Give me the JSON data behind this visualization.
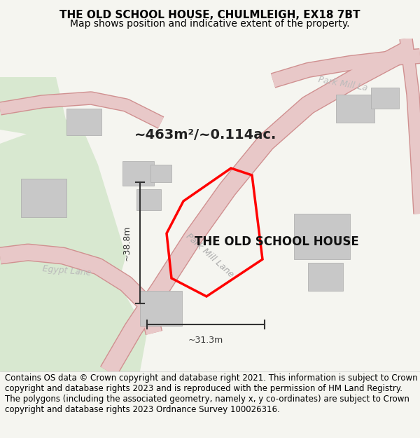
{
  "title_line1": "THE OLD SCHOOL HOUSE, CHULMLEIGH, EX18 7BT",
  "title_line2": "Map shows position and indicative extent of the property.",
  "footer_text": "Contains OS data © Crown copyright and database right 2021. This information is subject to Crown copyright and database rights 2023 and is reproduced with the permission of HM Land Registry. The polygons (including the associated geometry, namely x, y co-ordinates) are subject to Crown copyright and database rights 2023 Ordnance Survey 100026316.",
  "area_label": "~463m²/~0.114ac.",
  "property_label": "THE OLD SCHOOL HOUSE",
  "dim_width": "~31.3m",
  "dim_height": "~38.8m",
  "road_label1": "Park Mill Lane",
  "road_label2": "Park Mill La",
  "road_label3": "Egypt Lane",
  "bg_color": "#f5f5f0",
  "map_bg": "#f8f8f5",
  "green_area_color": "#d8e8d0",
  "road_color": "#e8c8c8",
  "road_line_color": "#d09090",
  "property_polygon_color": "#ff0000",
  "building_color": "#c8c8c8",
  "dim_line_color": "#333333",
  "footer_bg": "#ffffff",
  "title_fontsize": 11,
  "subtitle_fontsize": 10,
  "footer_fontsize": 8.5
}
